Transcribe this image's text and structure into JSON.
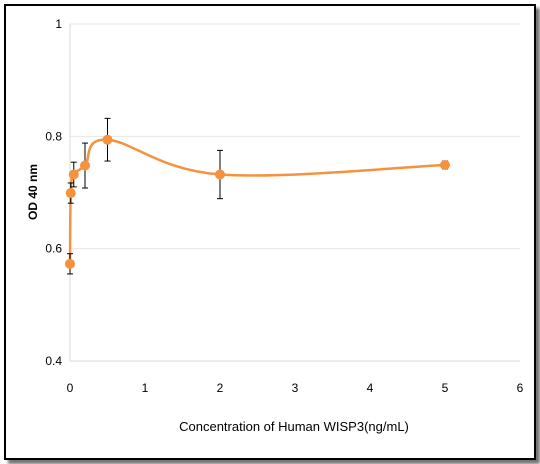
{
  "chart_data": {
    "type": "line",
    "xlabel": "Concentration of Human WISP3(ng/mL)",
    "ylabel": "OD 40 nm",
    "xlim": [
      0,
      6
    ],
    "ylim": [
      0.4,
      1
    ],
    "x_ticks": [
      "0",
      "1",
      "2",
      "3",
      "4",
      "5",
      "6"
    ],
    "y_ticks": [
      "0.4",
      "0.6",
      "0.8",
      "1"
    ],
    "grid": "horizontal",
    "smooth": true,
    "color": "#F4923D",
    "series": [
      {
        "x": [
          0,
          0.01,
          0.05,
          0.2,
          0.5,
          2,
          5
        ],
        "y": [
          0.573,
          0.699,
          0.732,
          0.748,
          0.794,
          0.732,
          0.749
        ],
        "error": [
          0.018,
          0.018,
          0.022,
          0.04,
          0.038,
          0.043,
          0.007
        ]
      }
    ]
  }
}
